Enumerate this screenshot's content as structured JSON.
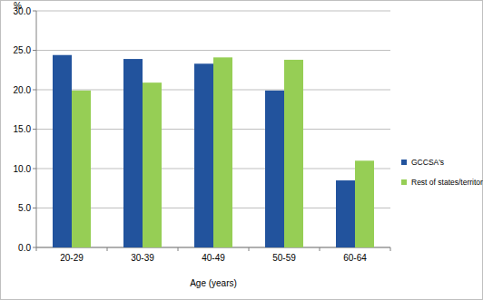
{
  "chart_data": {
    "type": "bar",
    "y_label": "%",
    "x_label": "Age (years)",
    "categories": [
      "20-29",
      "30-39",
      "40-49",
      "50-59",
      "60-64"
    ],
    "series": [
      {
        "name": "GCCSA's",
        "color": "#22539d",
        "values": [
          24.4,
          23.9,
          23.3,
          19.9,
          8.5
        ]
      },
      {
        "name": "Rest of states/territories",
        "color": "#96ce55",
        "values": [
          19.9,
          20.9,
          24.1,
          23.8,
          11.0
        ]
      }
    ],
    "ylim": [
      0,
      30
    ],
    "yticks": [
      {
        "value": 0,
        "label": "0.0"
      },
      {
        "value": 5,
        "label": "5.0"
      },
      {
        "value": 10,
        "label": "10.0"
      },
      {
        "value": 15,
        "label": "15.0"
      },
      {
        "value": 20,
        "label": "20.0"
      },
      {
        "value": 25,
        "label": "25.0"
      },
      {
        "value": 30,
        "label": "30.0"
      }
    ],
    "grid": true,
    "legend": "right"
  }
}
